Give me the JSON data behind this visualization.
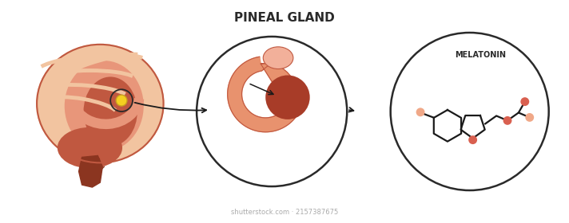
{
  "title": "PINEAL GLAND",
  "title_fontsize": 11,
  "title_fontweight": "bold",
  "title_color": "#2a2a2a",
  "melatonin_label": "MELATONIN",
  "melatonin_fontsize": 7,
  "watermark": "shutterstock.com · 2157387675",
  "watermark_fontsize": 6,
  "bg_color": "#ffffff",
  "brain_outer_color": "#F2C4A0",
  "brain_mid_color": "#E8967A",
  "brain_dark_color": "#C05840",
  "brain_darkest_color": "#8B3520",
  "pineal_yellow": "#F5D020",
  "circle_color": "#2a2a2a",
  "arrow_color": "#1a1a1a",
  "salmon_mid": "#E8926E",
  "salmon_light": "#F2B09A",
  "pineal_blob": "#A83C28",
  "dot_dark": "#D96050",
  "dot_light": "#F0A888"
}
